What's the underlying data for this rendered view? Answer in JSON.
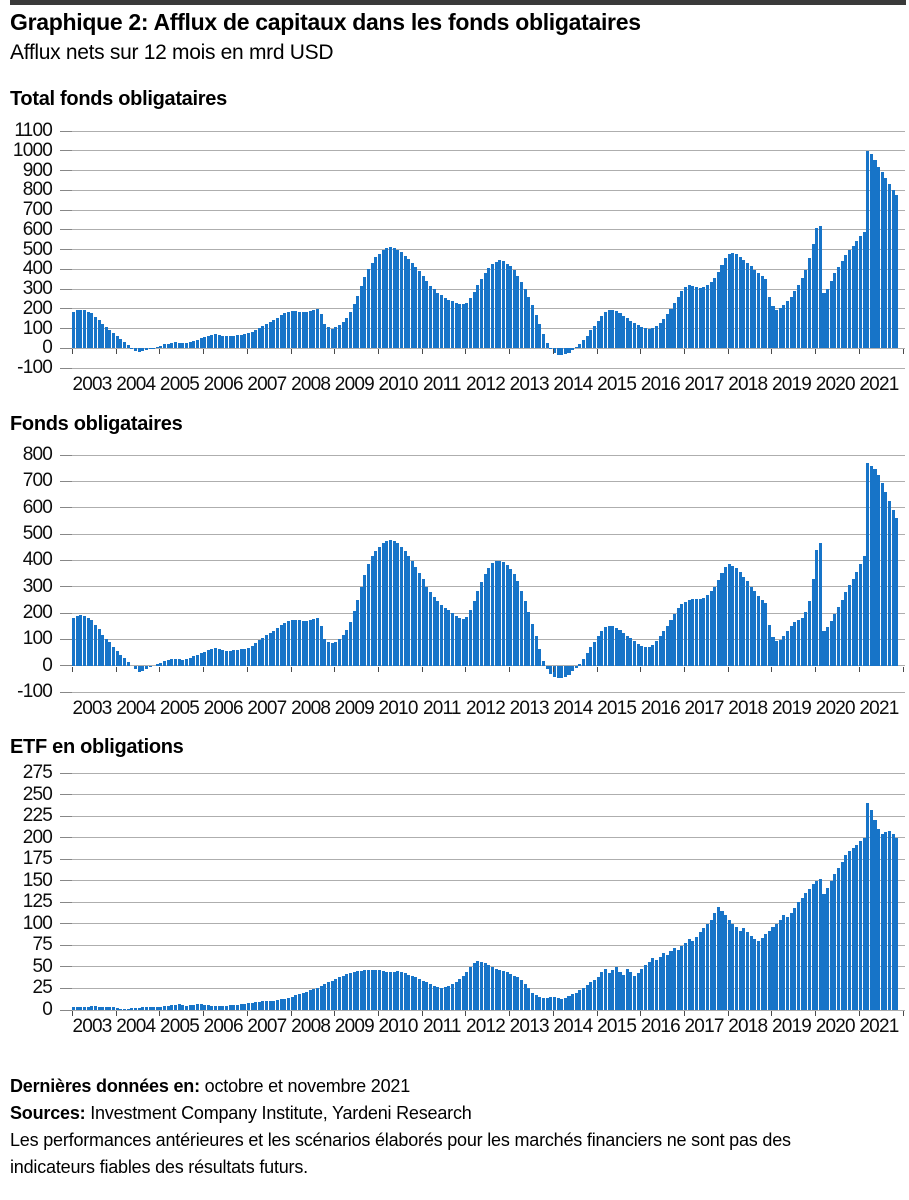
{
  "page": {
    "title": "Graphique 2: Afflux de capitaux dans les fonds obligataires",
    "subtitle": "Afflux nets sur 12 mois en mrd USD",
    "bar_color": "#1774c8",
    "rule_color": "#3a3a3a",
    "gridline_color": "#aeaeae"
  },
  "footer": {
    "last_data_label": "Dernières données en:",
    "last_data_value": " octobre et novembre 2021",
    "sources_label": "Sources:",
    "sources_value": " Investment Company Institute, Yardeni Research",
    "disclaimer": "Les performances antérieures et les scénarios élaborés pour les marchés financiers ne sont pas des indicateurs fiables des résultats futurs."
  },
  "chart_data": [
    {
      "type": "bar",
      "title": "Total fonds obligataires",
      "unit": "mrd USD",
      "x_start": "2003-01",
      "x_end": "2021-11",
      "x_tick_years": [
        2003,
        2004,
        2005,
        2006,
        2007,
        2008,
        2009,
        2010,
        2011,
        2012,
        2013,
        2014,
        2015,
        2016,
        2017,
        2018,
        2019,
        2020,
        2021
      ],
      "ylim": [
        -100,
        1100
      ],
      "ytick_step": 100,
      "grid": true,
      "legend": "none",
      "values": [
        185,
        192,
        195,
        192,
        186,
        176,
        160,
        142,
        122,
        106,
        92,
        76,
        60,
        45,
        30,
        15,
        2,
        -12,
        -20,
        -16,
        -8,
        -2,
        3,
        8,
        13,
        19,
        24,
        28,
        30,
        27,
        25,
        28,
        32,
        38,
        44,
        50,
        56,
        62,
        66,
        70,
        68,
        64,
        61,
        60,
        62,
        65,
        68,
        71,
        75,
        83,
        93,
        103,
        113,
        123,
        133,
        143,
        154,
        166,
        176,
        183,
        187,
        189,
        186,
        183,
        186,
        191,
        196,
        200,
        172,
        122,
        106,
        100,
        106,
        116,
        132,
        152,
        182,
        222,
        266,
        315,
        360,
        400,
        430,
        460,
        478,
        495,
        508,
        512,
        508,
        500,
        486,
        468,
        450,
        430,
        410,
        390,
        368,
        340,
        315,
        298,
        282,
        268,
        256,
        246,
        238,
        230,
        224,
        222,
        228,
        252,
        285,
        320,
        352,
        382,
        405,
        425,
        438,
        445,
        440,
        428,
        416,
        396,
        368,
        336,
        300,
        262,
        218,
        170,
        122,
        70,
        28,
        -5,
        -22,
        -32,
        -35,
        -30,
        -22,
        -10,
        5,
        20,
        40,
        64,
        90,
        115,
        140,
        165,
        185,
        194,
        195,
        190,
        178,
        165,
        152,
        140,
        128,
        118,
        108,
        102,
        100,
        105,
        115,
        130,
        150,
        172,
        200,
        230,
        260,
        290,
        312,
        318,
        315,
        308,
        305,
        310,
        320,
        335,
        355,
        385,
        420,
        455,
        478,
        482,
        475,
        462,
        448,
        432,
        415,
        398,
        380,
        365,
        352,
        260,
        215,
        196,
        202,
        218,
        238,
        262,
        290,
        320,
        355,
        398,
        455,
        530,
        610,
        620,
        280,
        300,
        340,
        380,
        410,
        440,
        470,
        495,
        520,
        545,
        570,
        590,
        1000,
        985,
        955,
        920,
        890,
        860,
        830,
        800,
        775
      ]
    },
    {
      "type": "bar",
      "title": "Fonds obligataires",
      "unit": "mrd USD",
      "x_start": "2003-01",
      "x_end": "2021-11",
      "x_tick_years": [
        2003,
        2004,
        2005,
        2006,
        2007,
        2008,
        2009,
        2010,
        2011,
        2012,
        2013,
        2014,
        2015,
        2016,
        2017,
        2018,
        2019,
        2020,
        2021
      ],
      "ylim": [
        -100,
        800
      ],
      "ytick_step": 100,
      "grid": true,
      "legend": "none",
      "values": [
        182,
        188,
        191,
        188,
        182,
        172,
        156,
        138,
        118,
        102,
        88,
        72,
        56,
        42,
        28,
        13,
        0,
        -14,
        -23,
        -19,
        -11,
        -5,
        0,
        5,
        10,
        16,
        21,
        25,
        27,
        24,
        22,
        25,
        29,
        35,
        41,
        47,
        52,
        58,
        62,
        66,
        64,
        60,
        57,
        56,
        58,
        60,
        62,
        64,
        68,
        76,
        86,
        96,
        106,
        115,
        124,
        133,
        143,
        154,
        163,
        169,
        173,
        175,
        172,
        169,
        171,
        175,
        179,
        181,
        152,
        102,
        90,
        86,
        91,
        101,
        116,
        136,
        166,
        206,
        250,
        300,
        345,
        385,
        415,
        435,
        450,
        465,
        475,
        477,
        473,
        466,
        452,
        436,
        418,
        398,
        375,
        352,
        328,
        300,
        278,
        262,
        246,
        232,
        220,
        210,
        200,
        190,
        182,
        178,
        185,
        210,
        245,
        285,
        318,
        350,
        372,
        388,
        396,
        399,
        393,
        382,
        368,
        348,
        320,
        284,
        244,
        204,
        158,
        112,
        64,
        18,
        -12,
        -30,
        -42,
        -47,
        -48,
        -44,
        -35,
        -22,
        -8,
        6,
        25,
        48,
        70,
        90,
        112,
        132,
        145,
        150,
        149,
        143,
        134,
        124,
        114,
        104,
        92,
        82,
        75,
        70,
        72,
        80,
        95,
        112,
        132,
        152,
        172,
        195,
        218,
        235,
        242,
        248,
        252,
        255,
        252,
        258,
        268,
        282,
        300,
        325,
        352,
        375,
        385,
        380,
        370,
        355,
        338,
        320,
        300,
        282,
        265,
        250,
        238,
        155,
        110,
        92,
        98,
        112,
        130,
        150,
        165,
        172,
        180,
        205,
        245,
        330,
        440,
        465,
        130,
        145,
        168,
        195,
        222,
        250,
        278,
        305,
        330,
        355,
        385,
        415,
        770,
        760,
        748,
        724,
        694,
        660,
        626,
        593,
        562
      ]
    },
    {
      "type": "bar",
      "title": "ETF en obligations",
      "unit": "mrd USD",
      "x_start": "2003-01",
      "x_end": "2021-11",
      "x_tick_years": [
        2003,
        2004,
        2005,
        2006,
        2007,
        2008,
        2009,
        2010,
        2011,
        2012,
        2013,
        2014,
        2015,
        2016,
        2017,
        2018,
        2019,
        2020,
        2021
      ],
      "ylim": [
        0,
        275
      ],
      "ytick_step": 25,
      "grid": true,
      "legend": "none",
      "values": [
        4,
        4,
        4,
        4,
        4,
        5,
        5,
        4,
        4,
        3,
        3,
        4,
        2,
        1,
        1,
        1,
        2,
        2,
        2,
        3,
        3,
        3,
        4,
        4,
        4,
        5,
        5,
        6,
        6,
        7,
        6,
        5,
        6,
        6,
        7,
        7,
        6,
        6,
        5,
        5,
        5,
        5,
        5,
        6,
        6,
        6,
        7,
        7,
        8,
        8,
        9,
        9,
        10,
        10,
        11,
        11,
        12,
        13,
        13,
        14,
        15,
        17,
        18,
        20,
        21,
        23,
        24,
        26,
        28,
        30,
        32,
        34,
        36,
        38,
        40,
        42,
        43,
        44,
        45,
        45,
        46,
        46,
        46,
        46,
        46,
        45,
        44,
        44,
        44,
        45,
        44,
        43,
        41,
        39,
        38,
        36,
        34,
        32,
        30,
        28,
        27,
        26,
        27,
        28,
        30,
        33,
        36,
        40,
        44,
        50,
        55,
        57,
        56,
        54,
        52,
        50,
        48,
        46,
        45,
        44,
        42,
        40,
        38,
        35,
        30,
        25,
        20,
        17,
        15,
        14,
        14,
        15,
        15,
        14,
        13,
        14,
        16,
        18,
        20,
        23,
        26,
        29,
        32,
        35,
        38,
        44,
        48,
        43,
        46,
        50,
        44,
        41,
        47,
        44,
        40,
        43,
        48,
        52,
        56,
        60,
        58,
        62,
        66,
        64,
        68,
        72,
        70,
        74,
        78,
        82,
        80,
        85,
        90,
        95,
        100,
        105,
        112,
        120,
        115,
        110,
        105,
        100,
        96,
        92,
        95,
        90,
        86,
        82,
        80,
        84,
        88,
        92,
        96,
        100,
        105,
        110,
        108,
        112,
        118,
        125,
        130,
        136,
        140,
        146,
        150,
        152,
        135,
        142,
        150,
        158,
        165,
        172,
        180,
        185,
        188,
        192,
        196,
        200,
        240,
        232,
        220,
        210,
        204,
        206,
        208,
        204,
        200
      ]
    }
  ]
}
